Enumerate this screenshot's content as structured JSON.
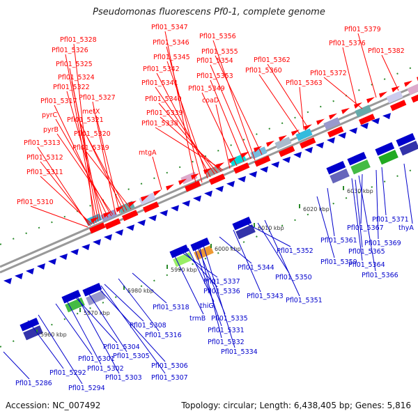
{
  "title": "Pseudomonas fluorescens Pf0-1, complete genome",
  "accession": "Accession: NC_007492",
  "summary": "Topology: circular; Length: 6,438,405 bp; Genes: 5,816",
  "colors": {
    "forward": "#ff0000",
    "reverse": "#0000cc",
    "backbone": "#999999"
  },
  "ticks": [
    "5960 kbp",
    "5970 kbp",
    "5980 kbp",
    "5990 kbp",
    "6000 kbp",
    "6010 kbp",
    "6020 kbp",
    "6030 kbp"
  ],
  "forward_labels": [
    "Pfl01_5347",
    "Pfl01_5356",
    "Pfl01_5379",
    "Pfl01_5328",
    "Pfl01_5346",
    "Pfl01_5376",
    "Pfl01_5382",
    "Pfl01_5326",
    "Pfl01_5345",
    "Pfl01_5355",
    "Pfl01_5354",
    "Pfl01_5362",
    "Pfl01_5325",
    "Pfl01_5342",
    "Pfl01_5360",
    "Pfl01_5353",
    "Pfl01_5372",
    "Pfl01_5324",
    "Pfl01_5341",
    "Pfl01_5363",
    "Pfl01_5322",
    "Pfl01_5349",
    "Pfl01_5327",
    "Pfl01_5340",
    "Pfl01_5317",
    "coaD",
    "metX",
    "Pfl01_5339",
    "pyrC",
    "Pfl01_5321",
    "Pfl01_5338",
    "pyrB",
    "Pfl01_5320",
    "Pfl01_5313",
    "Pfl01_5319",
    "mtgA",
    "Pfl01_5312",
    "Pfl01_5311",
    "Pfl01_5310"
  ],
  "reverse_labels": [
    "Pfl01_5371",
    "Pfl01_5367",
    "thyA",
    "Pfl01_5361",
    "Pfl01_5369",
    "Pfl01_5365",
    "Pfl01_5352",
    "Pfl01_5359",
    "Pfl01_5364",
    "Pfl01_5344",
    "Pfl01_5366",
    "Pfl01_5350",
    "Pfl01_5337",
    "Pfl01_5336",
    "Pfl01_5343",
    "Pfl01_5351",
    "Pfl01_5318",
    "thiG",
    "trmB",
    "Pfl01_5335",
    "Pfl01_5308",
    "Pfl01_5331",
    "Pfl01_5316",
    "Pfl01_5332",
    "Pfl01_5304",
    "Pfl01_5334",
    "Pfl01_5305",
    "Pfl01_5301",
    "Pfl01_5306",
    "Pfl01_5302",
    "Pfl01_5303",
    "Pfl01_5307",
    "Pfl01_5292",
    "Pfl01_5286",
    "Pfl01_5294"
  ]
}
